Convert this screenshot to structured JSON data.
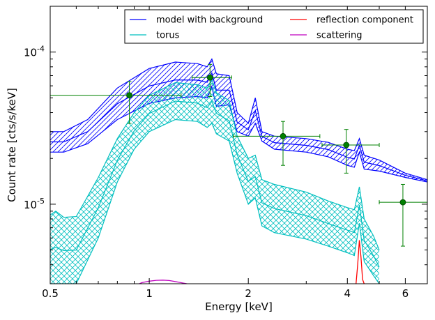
{
  "chart_data": {
    "type": "line",
    "xlabel": "Energy [keV]",
    "ylabel": "Count rate [cts/s/keV]",
    "xscale": "log",
    "yscale": "log",
    "xlim": [
      0.5,
      7.0
    ],
    "ylim": [
      3e-06,
      0.0002
    ],
    "xticks": [
      {
        "value": 0.5,
        "label": "0.5"
      },
      {
        "value": 1,
        "label": "1"
      },
      {
        "value": 2,
        "label": "2"
      },
      {
        "value": 4,
        "label": "4"
      },
      {
        "value": 6,
        "label": "6"
      }
    ],
    "yticks": [
      {
        "value": 1e-05,
        "base": "10",
        "exp": "-5"
      },
      {
        "value": 0.0001,
        "base": "10",
        "exp": "-4"
      }
    ],
    "legend": {
      "placement": "top-right",
      "entries": [
        {
          "label": "model with background",
          "color": "#0000ff"
        },
        {
          "label": "reflection component",
          "color": "#ff0000"
        },
        {
          "label": "torus",
          "color": "#00bfbf"
        },
        {
          "label": "scattering",
          "color": "#bf00bf"
        }
      ]
    },
    "series": [
      {
        "name": "model with background",
        "color": "#0000ff",
        "hatch": "diagonal",
        "x": [
          0.5,
          0.55,
          0.65,
          0.8,
          1.0,
          1.2,
          1.4,
          1.5,
          1.55,
          1.6,
          1.75,
          1.85,
          2.0,
          2.1,
          2.2,
          2.4,
          3.0,
          3.5,
          4.0,
          4.2,
          4.35,
          4.5,
          5.0,
          6.0,
          7.0
        ],
        "lower": [
          2.2e-05,
          2.2e-05,
          2.5e-05,
          3.6e-05,
          4.6e-05,
          5e-05,
          5.1e-05,
          5e-05,
          5.9e-05,
          4.4e-05,
          4.5e-05,
          3e-05,
          2.8e-05,
          3.4e-05,
          2.6e-05,
          2.3e-05,
          2.2e-05,
          2.05e-05,
          1.8e-05,
          1.75e-05,
          2.2e-05,
          1.7e-05,
          1.65e-05,
          1.5e-05,
          1.4e-05
        ],
        "upper": [
          3e-05,
          3e-05,
          3.6e-05,
          5.8e-05,
          7.8e-05,
          8.6e-05,
          8.4e-05,
          8e-05,
          9e-05,
          7.2e-05,
          7e-05,
          4e-05,
          3.4e-05,
          5e-05,
          3e-05,
          2.8e-05,
          2.7e-05,
          2.55e-05,
          2.3e-05,
          2.25e-05,
          2.7e-05,
          2.1e-05,
          1.95e-05,
          1.6e-05,
          1.45e-05
        ]
      },
      {
        "name": "torus",
        "color": "#00bfbf",
        "hatch": "cross",
        "x": [
          0.5,
          0.52,
          0.55,
          0.6,
          0.7,
          0.8,
          0.9,
          1.0,
          1.2,
          1.4,
          1.5,
          1.55,
          1.6,
          1.75,
          1.85,
          2.0,
          2.1,
          2.2,
          2.4,
          3.0,
          3.5,
          4.0,
          4.2,
          4.35,
          4.5,
          4.8,
          5.0
        ],
        "lower": [
          3e-06,
          3e-06,
          3e-06,
          3e-06,
          6e-06,
          1.4e-05,
          2.3e-05,
          3e-05,
          3.6e-05,
          3.5e-05,
          3.2e-05,
          3.4e-05,
          2.9e-05,
          2.6e-05,
          1.6e-05,
          1e-05,
          1.1e-05,
          7.2e-06,
          6.5e-06,
          5.9e-06,
          5.3e-06,
          4.8e-06,
          4.6e-06,
          7.5e-06,
          4.2e-06,
          3.4e-06,
          3e-06
        ],
        "upper": [
          8.5e-06,
          9e-06,
          8.2e-06,
          8.3e-06,
          1.5e-05,
          2.7e-05,
          4e-05,
          5.2e-05,
          6.3e-05,
          6.1e-05,
          5.8e-05,
          6.6e-05,
          5.4e-05,
          4.8e-05,
          2.8e-05,
          2e-05,
          2.1e-05,
          1.45e-05,
          1.35e-05,
          1.2e-05,
          1.05e-05,
          9.5e-06,
          9.2e-06,
          1.3e-05,
          8e-06,
          6.2e-06,
          5e-06
        ]
      },
      {
        "name": "reflection component",
        "color": "#ff0000",
        "x": [
          4.25,
          4.3,
          4.35,
          4.4,
          4.45,
          4.5
        ],
        "y": [
          3e-06,
          4e-06,
          5.8e-06,
          4.5e-06,
          3.2e-06,
          3e-06
        ]
      },
      {
        "name": "scattering",
        "color": "#bf00bf",
        "x": [
          0.9,
          0.95,
          1.0,
          1.05,
          1.1,
          1.15,
          1.2,
          1.3,
          1.4
        ],
        "y": [
          2.9e-06,
          3.05e-06,
          3.12e-06,
          3.16e-06,
          3.17e-06,
          3.15e-06,
          3.1e-06,
          3e-06,
          2.9e-06
        ]
      }
    ],
    "data_points": {
      "name": "data",
      "color": "#008000",
      "points": [
        {
          "x": 0.87,
          "y": 5.2e-05,
          "xlo": 0.5,
          "xhi": 1.25,
          "ylo": 3.4e-05,
          "yhi": 6.4e-05
        },
        {
          "x": 1.53,
          "y": 6.8e-05,
          "xlo": 1.35,
          "xhi": 1.78,
          "ylo": 5.1e-05,
          "yhi": 8.3e-05
        },
        {
          "x": 2.55,
          "y": 2.8e-05,
          "xlo": 1.8,
          "xhi": 3.3,
          "ylo": 1.8e-05,
          "yhi": 3.5e-05
        },
        {
          "x": 3.97,
          "y": 2.45e-05,
          "xlo": 3.35,
          "xhi": 5.0,
          "ylo": 1.6e-05,
          "yhi": 3.1e-05
        },
        {
          "x": 5.9,
          "y": 1.03e-05,
          "xlo": 5.0,
          "xhi": 7.0,
          "ylo": 5.3e-06,
          "yhi": 1.35e-05
        }
      ]
    }
  }
}
